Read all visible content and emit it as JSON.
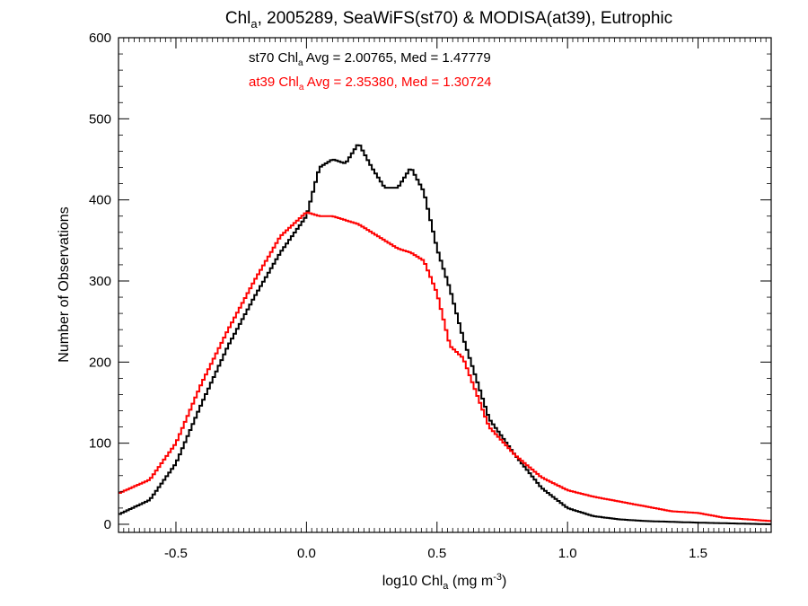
{
  "chart_data": {
    "type": "line",
    "title": {
      "prefix": "Chl",
      "sub": "a",
      "rest": ", 2005289, SeaWiFS(st70) & MODISA(at39), Eutrophic"
    },
    "xlabel": {
      "prefix": "log10 Chl",
      "sub": "a",
      "mid": " (mg m",
      "sup": "-3",
      "end": ")"
    },
    "ylabel": "Number of Observations",
    "xlim": [
      -0.72,
      1.78
    ],
    "ylim": [
      -10,
      600
    ],
    "xticks": [
      -0.5,
      0.0,
      0.5,
      1.0,
      1.5
    ],
    "xtick_labels": [
      "-0.5",
      "0.0",
      "0.5",
      "1.0",
      "1.5"
    ],
    "yticks": [
      0,
      100,
      200,
      300,
      400,
      500,
      600
    ],
    "ytick_labels": [
      "0",
      "100",
      "200",
      "300",
      "400",
      "500",
      "600"
    ],
    "grid": false,
    "legend": [
      {
        "series": "st70",
        "prefix": "st70 Chl",
        "sub": "a",
        "rest": " Avg = 2.00765, Med = 1.47779",
        "color": "#000000"
      },
      {
        "series": "at39",
        "prefix": "at39 Chl",
        "sub": "a",
        "rest": " Avg = 2.35380, Med = 1.30724",
        "color": "#ff0000"
      }
    ],
    "series": [
      {
        "name": "st70",
        "color": "#000000",
        "x": [
          -0.72,
          -0.6,
          -0.5,
          -0.4,
          -0.3,
          -0.2,
          -0.1,
          0.0,
          0.05,
          0.1,
          0.15,
          0.2,
          0.25,
          0.3,
          0.35,
          0.4,
          0.45,
          0.5,
          0.55,
          0.6,
          0.7,
          0.8,
          0.9,
          1.0,
          1.1,
          1.2,
          1.3,
          1.5,
          1.78
        ],
        "y": [
          12,
          30,
          75,
          150,
          220,
          280,
          335,
          380,
          440,
          450,
          445,
          470,
          440,
          415,
          415,
          440,
          410,
          340,
          290,
          230,
          130,
          85,
          45,
          20,
          10,
          6,
          4,
          2,
          0
        ]
      },
      {
        "name": "at39",
        "color": "#ff0000",
        "x": [
          -0.72,
          -0.6,
          -0.5,
          -0.4,
          -0.3,
          -0.2,
          -0.1,
          0.0,
          0.05,
          0.1,
          0.15,
          0.2,
          0.25,
          0.3,
          0.35,
          0.4,
          0.45,
          0.5,
          0.55,
          0.6,
          0.7,
          0.8,
          0.9,
          1.0,
          1.1,
          1.2,
          1.3,
          1.4,
          1.5,
          1.6,
          1.78
        ],
        "y": [
          38,
          55,
          100,
          175,
          240,
          300,
          355,
          385,
          380,
          380,
          375,
          370,
          360,
          350,
          340,
          335,
          325,
          285,
          220,
          205,
          120,
          85,
          58,
          42,
          34,
          28,
          22,
          16,
          14,
          8,
          4
        ]
      }
    ]
  }
}
